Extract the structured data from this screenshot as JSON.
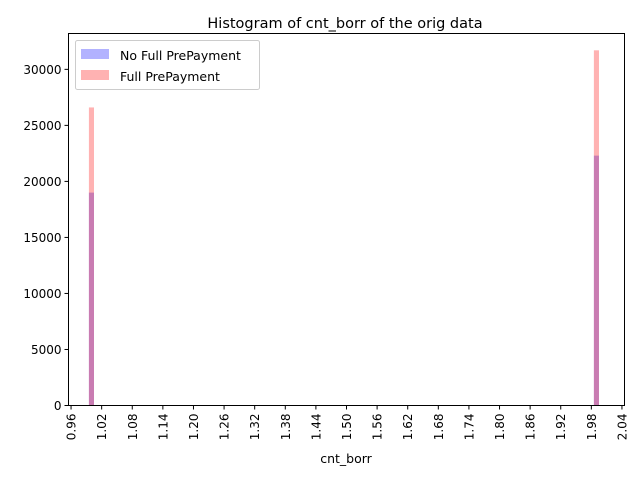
{
  "chart_data": {
    "type": "bar",
    "title": "Histogram of cnt_borr of the orig data",
    "xlabel": "cnt_borr",
    "ylabel": "",
    "xlim": [
      0.955,
      2.045
    ],
    "ylim": [
      0,
      33200
    ],
    "x_ticks": [
      "0.96",
      "1.02",
      "1.08",
      "1.14",
      "1.20",
      "1.26",
      "1.32",
      "1.38",
      "1.44",
      "1.50",
      "1.56",
      "1.62",
      "1.68",
      "1.74",
      "1.80",
      "1.86",
      "1.92",
      "1.98",
      "2.04"
    ],
    "y_ticks": [
      "0",
      "5000",
      "10000",
      "15000",
      "20000",
      "25000",
      "30000"
    ],
    "bin_width": 0.01,
    "legend_position": "upper-left",
    "series": [
      {
        "name": "No Full PrePayment",
        "color": "#0000ff",
        "alpha": 0.3,
        "x": [
          1.0,
          1.99
        ],
        "values": [
          19000,
          22300
        ]
      },
      {
        "name": "Full PrePayment",
        "color": "#ff0000",
        "alpha": 0.3,
        "x": [
          1.0,
          1.99
        ],
        "values": [
          26600,
          31700
        ]
      }
    ]
  }
}
